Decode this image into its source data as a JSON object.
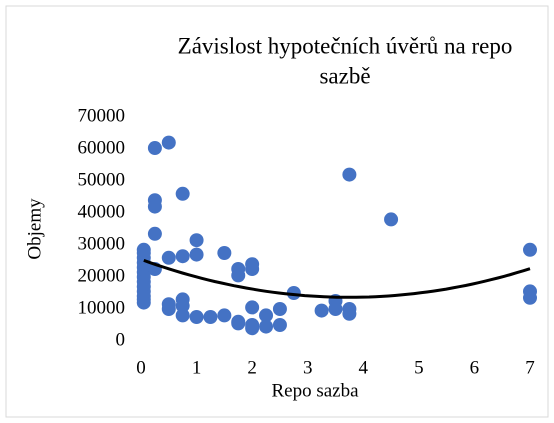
{
  "chart_data": {
    "type": "scatter",
    "title": "Závislost hypotečních úvěrů na repo sazbě",
    "title_lines": [
      "Závislost hypotečních úvěrů na repo",
      "sazbě"
    ],
    "xlabel": "Repo sazba",
    "ylabel": "Objemy",
    "series": [
      {
        "name": "Objemy",
        "color": "#4472c4",
        "x": [
          0.05,
          0.05,
          0.05,
          0.05,
          0.05,
          0.05,
          0.05,
          0.05,
          0.05,
          0.05,
          0.05,
          0.05,
          0.05,
          0.25,
          0.5,
          0.25,
          0.25,
          0.25,
          0.25,
          0.75,
          0.5,
          0.75,
          1,
          1,
          0.5,
          0.5,
          0.75,
          0.75,
          0.75,
          1,
          1.25,
          1.5,
          1.5,
          1.75,
          1.75,
          1.75,
          1.75,
          2,
          2,
          2,
          2,
          2,
          2.25,
          2.25,
          2.5,
          2.5,
          2.75,
          3.25,
          3.5,
          3.5,
          3.75,
          3.75,
          3.75,
          4.5,
          7,
          7,
          7
        ],
        "values": [
          28500,
          27500,
          26000,
          24500,
          23000,
          21500,
          20000,
          18500,
          17000,
          15500,
          14000,
          13000,
          12000,
          60300,
          62000,
          44000,
          42000,
          33500,
          22500,
          46000,
          26000,
          26500,
          31500,
          27000,
          11500,
          10000,
          13000,
          11000,
          8000,
          7500,
          7500,
          8000,
          27500,
          22500,
          20500,
          6000,
          5500,
          24000,
          22500,
          10500,
          5000,
          4000,
          8000,
          4500,
          10000,
          5000,
          15000,
          9500,
          12500,
          10000,
          52000,
          10000,
          8500,
          38000,
          28500,
          15500,
          13500
        ]
      }
    ],
    "trendline": {
      "type": "polynomial",
      "order": 2,
      "color": "#000000"
    },
    "xlim": [
      0,
      7
    ],
    "xticks": [
      0,
      1,
      2,
      3,
      4,
      5,
      6,
      7
    ],
    "ylim": [
      0,
      70000
    ],
    "yticks": [
      0,
      10000,
      20000,
      30000,
      40000,
      50000,
      60000,
      70000
    ]
  }
}
